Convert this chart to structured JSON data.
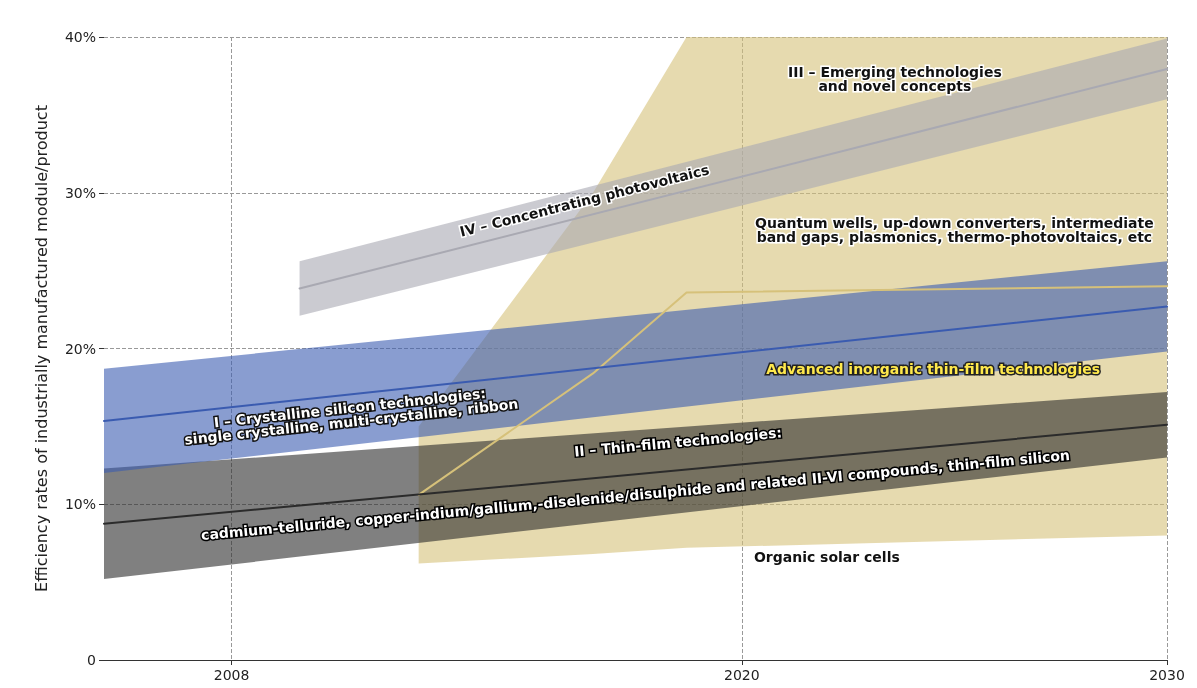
{
  "chart_data": {
    "type": "line",
    "marker": "none",
    "ylabel": "Efficiency rates of industrially manufactured module/product",
    "xlim": [
      2005,
      2030
    ],
    "xticks": [
      2008,
      2020,
      2030
    ],
    "ylim": [
      0,
      40
    ],
    "yticks": [
      0,
      {
        "value": 10,
        "label": "10%"
      },
      {
        "value": 20,
        "label": "20%"
      },
      {
        "value": 30,
        "label": "30%"
      },
      {
        "value": 40,
        "label": "40%"
      }
    ],
    "grid": true,
    "series": [
      {
        "color": "#d6c17a",
        "x": [
          2012.4,
          2016.5,
          2018.7,
          2030
        ],
        "values": [
          10.6,
          18.4,
          23.6,
          24
        ],
        "lower": [
          6.2,
          6.8,
          7.2,
          8
        ],
        "upper": [
          15,
          30,
          40,
          40
        ]
      },
      {
        "color": "#2b2b2b",
        "x": [
          2005,
          2030
        ],
        "values": [
          8.75,
          15.1
        ],
        "lower": [
          5.2,
          13
        ],
        "upper": [
          12.3,
          17.2
        ]
      },
      {
        "color": "#3a5bb0",
        "x": [
          2005,
          2030
        ],
        "values": [
          15.35,
          22.7
        ],
        "lower": [
          12,
          19.8
        ],
        "upper": [
          18.7,
          25.6
        ]
      },
      {
        "color": "#a9a9b2",
        "x": [
          2009.6,
          2030
        ],
        "values": [
          23.85,
          37.95
        ],
        "lower": [
          22.1,
          36
        ],
        "upper": [
          25.6,
          39.9
        ]
      }
    ],
    "annotations": [
      "III – Emerging technologies\nand novel concepts",
      "IV – Concentrating photovoltaics",
      "Quantum wells, up-down converters, intermediate\nband gaps, plasmonics, thermo-photovoltaics, etc",
      "I – Crystalline silicon technologies:\nsingle crystalline, multi-crystalline, ribbon",
      "Advanced inorganic thin-film technologies",
      "II – Thin-film technologies:",
      "cadmium-telluride, copper-indium/gallium,-diselenide/disulphide and related II-VI compounds, thin-film silicon",
      "Organic solar cells"
    ]
  }
}
